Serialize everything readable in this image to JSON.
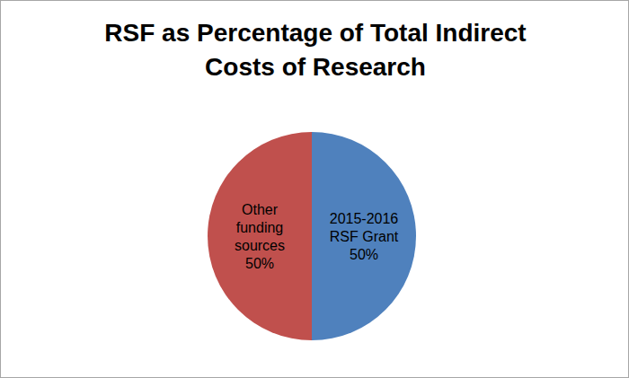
{
  "chart_data": {
    "type": "pie",
    "title": "RSF as Percentage of Total Indirect Costs of Research",
    "categories": [
      "2015-2016 RSF Grant",
      "Other funding sources"
    ],
    "values": [
      50,
      50
    ],
    "value_labels": [
      "50%",
      "50%"
    ],
    "colors": [
      "#4f81bd",
      "#c0504d"
    ],
    "data_labels": true
  }
}
